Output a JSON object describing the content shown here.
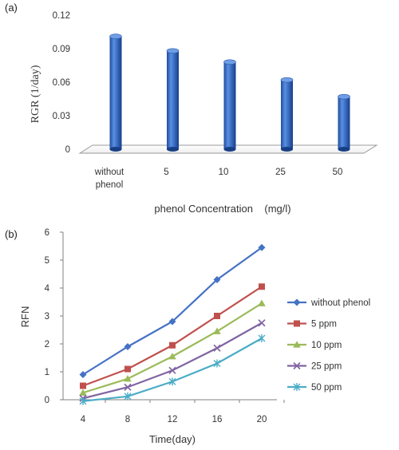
{
  "chart_data": [
    {
      "type": "bar",
      "panel_label": "(a)",
      "categories": [
        "without\nphenol",
        "5",
        "10",
        "25",
        "50"
      ],
      "values": [
        0.101,
        0.088,
        0.078,
        0.062,
        0.047
      ],
      "xlabel": "phenol Concentration    (mg/l)",
      "ylabel": "RGR (1/day)",
      "ylim": [
        0,
        0.12
      ],
      "yticks": [
        "0",
        "0.03",
        "0.06",
        "0.09",
        "0.12"
      ],
      "ytick_values": [
        0,
        0.03,
        0.06,
        0.09,
        0.12
      ],
      "grid": false,
      "color": "#3a6cc0"
    },
    {
      "type": "line",
      "panel_label": "(b)",
      "x": [
        4,
        8,
        12,
        16,
        20
      ],
      "xticks": [
        "4",
        "8",
        "12",
        "16",
        "20"
      ],
      "xlabel": "Time(day)",
      "ylabel": "RFN",
      "ylim": [
        0,
        6
      ],
      "yticks": [
        "0",
        "1",
        "2",
        "3",
        "4",
        "5",
        "6"
      ],
      "ytick_values": [
        0,
        1,
        2,
        3,
        4,
        5,
        6
      ],
      "grid": false,
      "legend_position": "right",
      "series": [
        {
          "name": "without phenol",
          "values": [
            0.9,
            1.9,
            2.8,
            4.3,
            5.45
          ],
          "color": "#4472c4",
          "marker": "diamond"
        },
        {
          "name": "5 ppm",
          "values": [
            0.5,
            1.1,
            1.95,
            3.0,
            4.05
          ],
          "color": "#c0504d",
          "marker": "square"
        },
        {
          "name": "10 ppm",
          "values": [
            0.25,
            0.75,
            1.55,
            2.45,
            3.45
          ],
          "color": "#9bbb59",
          "marker": "triangle"
        },
        {
          "name": "25 ppm",
          "values": [
            0.05,
            0.45,
            1.05,
            1.85,
            2.75
          ],
          "color": "#8064a2",
          "marker": "x"
        },
        {
          "name": "50 ppm",
          "values": [
            -0.05,
            0.12,
            0.65,
            1.3,
            2.2
          ],
          "color": "#4bacc6",
          "marker": "star"
        }
      ]
    }
  ]
}
